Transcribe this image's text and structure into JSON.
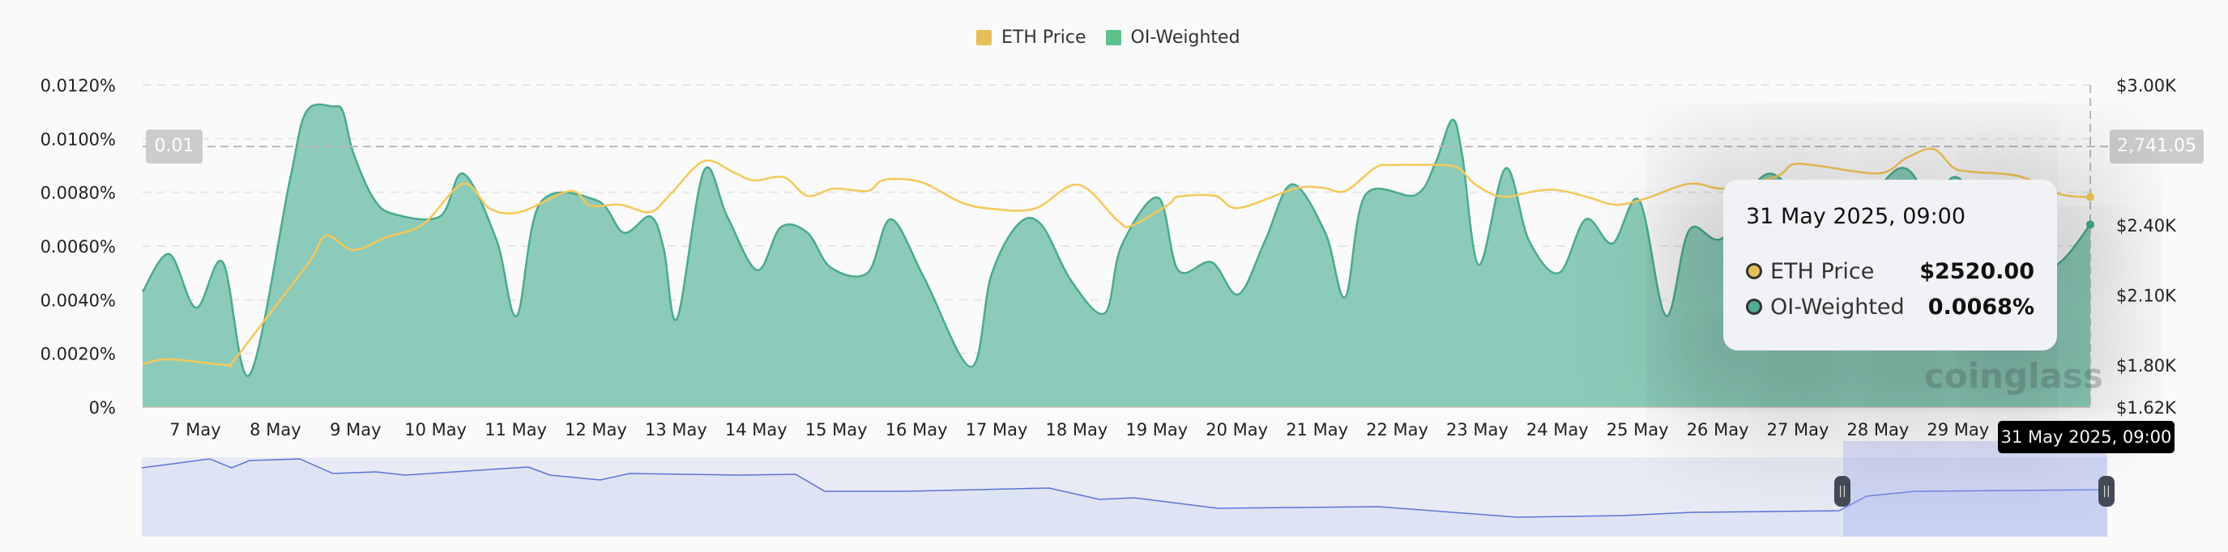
{
  "legend": [
    {
      "label": "ETH Price",
      "color": "#e6bf5a"
    },
    {
      "label": "OI-Weighted",
      "color": "#5cc28c"
    }
  ],
  "chart_data": {
    "type": "area+line",
    "y_left": {
      "ticks": [
        "0%",
        "0.0020%",
        "0.0040%",
        "0.0060%",
        "0.0080%",
        "0.0100%",
        "0.0120%"
      ],
      "ylim": [
        0,
        0.012
      ],
      "unit": "%"
    },
    "y_right": {
      "ticks": [
        "$1.62K",
        "$1.80K",
        "$2.10K",
        "$2.40K",
        "$3.00K"
      ],
      "tick_values": [
        1620,
        1800,
        2100,
        2400,
        3000
      ],
      "ylim": [
        1620,
        3000
      ]
    },
    "x_tick_labels": [
      "7 May",
      "8 May",
      "9 May",
      "10 May",
      "11 May",
      "12 May",
      "13 May",
      "14 May",
      "15 May",
      "16 May",
      "17 May",
      "18 May",
      "19 May",
      "20 May",
      "21 May",
      "22 May",
      "23 May",
      "24 May",
      "25 May",
      "26 May",
      "27 May",
      "28 May",
      "29 May"
    ],
    "grid": true,
    "legend_position": "top-center",
    "series": [
      {
        "name": "OI-Weighted",
        "type": "area",
        "color": "#4aaa8f",
        "fill": "#8ccbb9",
        "points": [
          [
            "2025-05-07 02:00",
            0.0043
          ],
          [
            "2025-05-07 10:00",
            0.0057
          ],
          [
            "2025-05-07 18:00",
            0.0037
          ],
          [
            "2025-05-08 02:00",
            0.0054
          ],
          [
            "2025-05-08 10:00",
            0.0012
          ],
          [
            "2025-05-08 22:00",
            0.0084
          ],
          [
            "2025-05-09 03:00",
            0.011
          ],
          [
            "2025-05-09 11:00",
            0.0112
          ],
          [
            "2025-05-09 14:00",
            0.011
          ],
          [
            "2025-05-09 17:00",
            0.0095
          ],
          [
            "2025-05-09 23:00",
            0.0078
          ],
          [
            "2025-05-10 05:00",
            0.0072
          ],
          [
            "2025-05-10 19:00",
            0.0071
          ],
          [
            "2025-05-11 02:00",
            0.0087
          ],
          [
            "2025-05-11 12:00",
            0.0062
          ],
          [
            "2025-05-11 18:00",
            0.0034
          ],
          [
            "2025-05-12 01:00",
            0.0076
          ],
          [
            "2025-05-12 18:00",
            0.0077
          ],
          [
            "2025-05-13 02:00",
            0.0065
          ],
          [
            "2025-05-13 10:00",
            0.0071
          ],
          [
            "2025-05-13 14:00",
            0.0059
          ],
          [
            "2025-05-13 18:00",
            0.0033
          ],
          [
            "2025-05-14 02:00",
            0.0088
          ],
          [
            "2025-05-14 09:00",
            0.0071
          ],
          [
            "2025-05-14 18:00",
            0.0051
          ],
          [
            "2025-05-15 01:00",
            0.0067
          ],
          [
            "2025-05-15 09:00",
            0.0065
          ],
          [
            "2025-05-15 16:00",
            0.0052
          ],
          [
            "2025-05-16 03:00",
            0.005
          ],
          [
            "2025-05-16 10:00",
            0.007
          ],
          [
            "2025-05-16 20:00",
            0.0048
          ],
          [
            "2025-05-17 10:00",
            0.0015
          ],
          [
            "2025-05-17 16:00",
            0.0049
          ],
          [
            "2025-05-18 00:00",
            0.0068
          ],
          [
            "2025-05-18 07:00",
            0.0068
          ],
          [
            "2025-05-18 16:00",
            0.0047
          ],
          [
            "2025-05-19 02:00",
            0.0035
          ],
          [
            "2025-05-19 07:00",
            0.006
          ],
          [
            "2025-05-19 18:00",
            0.0078
          ],
          [
            "2025-05-20 00:00",
            0.0051
          ],
          [
            "2025-05-20 10:00",
            0.0054
          ],
          [
            "2025-05-20 18:00",
            0.0042
          ],
          [
            "2025-05-21 02:00",
            0.0062
          ],
          [
            "2025-05-21 10:00",
            0.0083
          ],
          [
            "2025-05-21 20:00",
            0.0065
          ],
          [
            "2025-05-22 02:00",
            0.0041
          ],
          [
            "2025-05-22 08:00",
            0.0079
          ],
          [
            "2025-05-22 23:00",
            0.0079
          ],
          [
            "2025-05-23 05:00",
            0.0091
          ],
          [
            "2025-05-23 10:00",
            0.0107
          ],
          [
            "2025-05-23 13:00",
            0.0094
          ],
          [
            "2025-05-23 18:00",
            0.0053
          ],
          [
            "2025-05-24 02:00",
            0.0089
          ],
          [
            "2025-05-24 09:00",
            0.0062
          ],
          [
            "2025-05-24 18:00",
            0.005
          ],
          [
            "2025-05-25 02:00",
            0.007
          ],
          [
            "2025-05-25 10:00",
            0.0061
          ],
          [
            "2025-05-25 18:00",
            0.0077
          ],
          [
            "2025-05-26 02:00",
            0.0034
          ],
          [
            "2025-05-26 09:00",
            0.0066
          ],
          [
            "2025-05-26 19:00",
            0.0063
          ],
          [
            "2025-05-27 09:00",
            0.0087
          ],
          [
            "2025-05-28 04:00",
            0.0065
          ],
          [
            "2025-05-29 00:00",
            0.0089
          ],
          [
            "2025-05-29 10:00",
            0.0075
          ],
          [
            "2025-05-29 18:00",
            0.0085
          ],
          [
            "2025-05-30 14:00",
            0.005
          ],
          [
            "2025-05-31 00:00",
            0.0054
          ],
          [
            "2025-05-31 09:00",
            0.0068
          ]
        ]
      },
      {
        "name": "ETH Price",
        "type": "line",
        "color": "#f5c85a",
        "points": [
          [
            "2025-05-07 02:00",
            1804
          ],
          [
            "2025-05-07 10:00",
            1825
          ],
          [
            "2025-05-08 03:00",
            1800
          ],
          [
            "2025-05-08 05:00",
            1814
          ],
          [
            "2025-05-08 15:00",
            2001
          ],
          [
            "2025-05-09 04:00",
            2244
          ],
          [
            "2025-05-09 09:00",
            2355
          ],
          [
            "2025-05-09 17:00",
            2293
          ],
          [
            "2025-05-10 03:00",
            2348
          ],
          [
            "2025-05-10 14:00",
            2404
          ],
          [
            "2025-05-11 02:00",
            2577
          ],
          [
            "2025-05-11 10:00",
            2470
          ],
          [
            "2025-05-11 19:00",
            2456
          ],
          [
            "2025-05-12 10:00",
            2546
          ],
          [
            "2025-05-12 16:00",
            2483
          ],
          [
            "2025-05-13 01:00",
            2487
          ],
          [
            "2025-05-13 10:00",
            2456
          ],
          [
            "2025-05-13 16:00",
            2532
          ],
          [
            "2025-05-14 02:00",
            2674
          ],
          [
            "2025-05-14 11:00",
            2625
          ],
          [
            "2025-05-14 17:00",
            2591
          ],
          [
            "2025-05-15 02:00",
            2605
          ],
          [
            "2025-05-15 09:00",
            2525
          ],
          [
            "2025-05-15 17:00",
            2556
          ],
          [
            "2025-05-16 03:00",
            2546
          ],
          [
            "2025-05-16 08:00",
            2594
          ],
          [
            "2025-05-16 19:00",
            2584
          ],
          [
            "2025-05-17 07:00",
            2497
          ],
          [
            "2025-05-17 16:00",
            2470
          ],
          [
            "2025-05-18 05:00",
            2470
          ],
          [
            "2025-05-18 18:00",
            2573
          ],
          [
            "2025-05-19 06:00",
            2417
          ],
          [
            "2025-05-19 10:00",
            2397
          ],
          [
            "2025-05-19 21:00",
            2487
          ],
          [
            "2025-05-20 00:00",
            2521
          ],
          [
            "2025-05-20 11:00",
            2525
          ],
          [
            "2025-05-20 18:00",
            2473
          ],
          [
            "2025-05-21 11:00",
            2556
          ],
          [
            "2025-05-21 19:00",
            2560
          ],
          [
            "2025-05-22 02:00",
            2546
          ],
          [
            "2025-05-22 11:00",
            2646
          ],
          [
            "2025-05-22 16:00",
            2657
          ],
          [
            "2025-05-23 06:00",
            2657
          ],
          [
            "2025-05-23 12:00",
            2643
          ],
          [
            "2025-05-23 17:00",
            2573
          ],
          [
            "2025-05-24 01:00",
            2521
          ],
          [
            "2025-05-24 11:00",
            2546
          ],
          [
            "2025-05-24 18:00",
            2549
          ],
          [
            "2025-05-25 03:00",
            2518
          ],
          [
            "2025-05-25 11:00",
            2487
          ],
          [
            "2025-05-25 20:00",
            2514
          ],
          [
            "2025-05-26 09:00",
            2577
          ],
          [
            "2025-05-26 20:00",
            2556
          ],
          [
            "2025-05-27 11:00",
            2608
          ],
          [
            "2025-05-27 16:00",
            2660
          ],
          [
            "2025-05-28 00:00",
            2653
          ],
          [
            "2025-05-28 18:00",
            2622
          ],
          [
            "2025-05-29 02:00",
            2688
          ],
          [
            "2025-05-29 10:00",
            2726
          ],
          [
            "2025-05-29 16:00",
            2646
          ],
          [
            "2025-05-29 21:00",
            2629
          ],
          [
            "2025-05-30 12:00",
            2608
          ],
          [
            "2025-05-31 00:00",
            2532
          ],
          [
            "2025-05-31 09:00",
            2520
          ]
        ]
      }
    ]
  },
  "crosshair": {
    "x_label": "31 May 2025, 09:00",
    "left_label": "0.01",
    "right_label": "2,741.05"
  },
  "tooltip": {
    "title": "31 May 2025, 09:00",
    "rows": [
      {
        "name": "ETH Price",
        "value": "$2520.00",
        "color": "#e6bf5a"
      },
      {
        "name": "OI-Weighted",
        "value": "0.0068%",
        "color": "#4fae94"
      }
    ]
  },
  "watermark": "coinglass",
  "navigator": {
    "handle_icon": "grip-icon",
    "handle_glyph": "||"
  }
}
